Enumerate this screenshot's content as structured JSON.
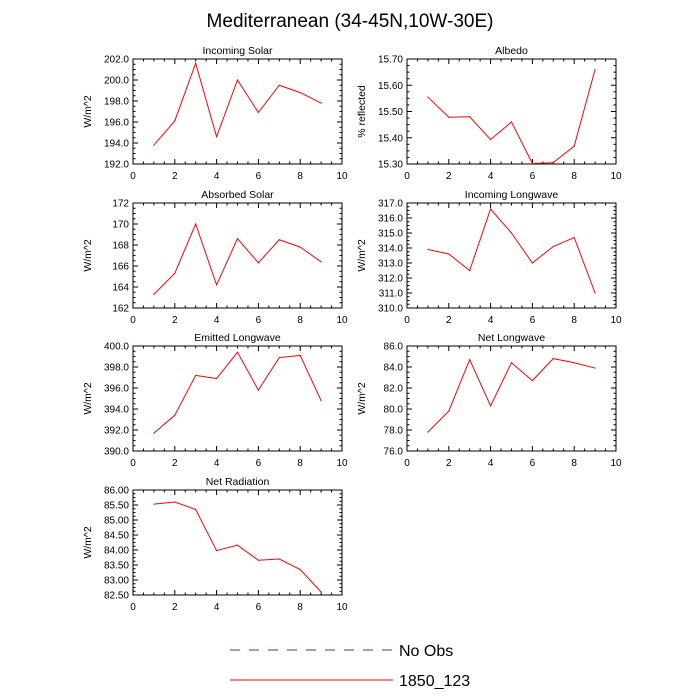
{
  "title": "Mediterranean (34-45N,10W-30E)",
  "colors": {
    "series": "#ff0000",
    "obs": "#3a3aa8",
    "axis": "#000000"
  },
  "legend": [
    {
      "label": "No Obs",
      "style": "dashed",
      "color": "#3a3aa8"
    },
    {
      "label": "1850_123",
      "style": "solid",
      "color": "#ff0000"
    }
  ],
  "chart_data": [
    {
      "type": "line",
      "title": "Incoming Solar",
      "ylabel": "W/m^2",
      "xlim": [
        0,
        10
      ],
      "ylim": [
        192,
        202
      ],
      "xticks": [
        "0",
        "2",
        "4",
        "6",
        "8",
        "10"
      ],
      "yticks": [
        "192.0",
        "194.0",
        "196.0",
        "198.0",
        "200.0",
        "202.0"
      ],
      "x": [
        1,
        2,
        3,
        4,
        5,
        6,
        7,
        8,
        9
      ],
      "series": [
        {
          "values": [
            193.8,
            196.1,
            201.6,
            194.6,
            200.0,
            196.9,
            199.5,
            198.8,
            197.8
          ]
        }
      ]
    },
    {
      "type": "line",
      "title": "Albedo",
      "ylabel": "% reflected",
      "xlim": [
        0,
        10
      ],
      "ylim": [
        15.3,
        15.7
      ],
      "xticks": [
        "0",
        "2",
        "4",
        "6",
        "8",
        "10"
      ],
      "yticks": [
        "15.30",
        "15.40",
        "15.50",
        "15.60",
        "15.70"
      ],
      "x": [
        1,
        2,
        3,
        4,
        5,
        6,
        7,
        8,
        9
      ],
      "series": [
        {
          "values": [
            15.555,
            15.478,
            15.48,
            15.393,
            15.46,
            15.302,
            15.305,
            15.368,
            15.66
          ]
        }
      ]
    },
    {
      "type": "line",
      "title": "Absorbed Solar",
      "ylabel": "W/m^2",
      "xlim": [
        0,
        10
      ],
      "ylim": [
        162,
        172
      ],
      "xticks": [
        "0",
        "2",
        "4",
        "6",
        "8",
        "10"
      ],
      "yticks": [
        "162",
        "164",
        "166",
        "168",
        "170",
        "172"
      ],
      "x": [
        1,
        2,
        3,
        4,
        5,
        6,
        7,
        8,
        9
      ],
      "series": [
        {
          "values": [
            163.3,
            165.3,
            170.0,
            164.2,
            168.6,
            166.3,
            168.5,
            167.8,
            166.4
          ]
        }
      ]
    },
    {
      "type": "line",
      "title": "Incoming Longwave",
      "ylabel": "W/m^2",
      "xlim": [
        0,
        10
      ],
      "ylim": [
        310,
        317
      ],
      "xticks": [
        "0",
        "2",
        "4",
        "6",
        "8",
        "10"
      ],
      "yticks": [
        "310.0",
        "311.0",
        "312.0",
        "313.0",
        "314.0",
        "315.0",
        "316.0",
        "317.0"
      ],
      "x": [
        1,
        2,
        3,
        4,
        5,
        6,
        7,
        8,
        9
      ],
      "series": [
        {
          "values": [
            313.9,
            313.6,
            312.5,
            316.6,
            315.0,
            313.0,
            314.1,
            314.7,
            311.0
          ]
        }
      ]
    },
    {
      "type": "line",
      "title": "Emitted Longwave",
      "ylabel": "W/m^2",
      "xlim": [
        0,
        10
      ],
      "ylim": [
        390,
        400
      ],
      "xticks": [
        "0",
        "2",
        "4",
        "6",
        "8",
        "10"
      ],
      "yticks": [
        "390.0",
        "392.0",
        "394.0",
        "396.0",
        "398.0",
        "400.0"
      ],
      "x": [
        1,
        2,
        3,
        4,
        5,
        6,
        7,
        8,
        9
      ],
      "series": [
        {
          "values": [
            391.7,
            393.4,
            397.2,
            396.9,
            399.4,
            395.8,
            398.9,
            399.1,
            394.8
          ]
        }
      ]
    },
    {
      "type": "line",
      "title": "Net Longwave",
      "ylabel": "W/m^2",
      "xlim": [
        0,
        10
      ],
      "ylim": [
        76,
        86
      ],
      "xticks": [
        "0",
        "2",
        "4",
        "6",
        "8",
        "10"
      ],
      "yticks": [
        "76.0",
        "78.0",
        "80.0",
        "82.0",
        "84.0",
        "86.0"
      ],
      "x": [
        1,
        2,
        3,
        4,
        5,
        6,
        7,
        8,
        9
      ],
      "series": [
        {
          "values": [
            77.8,
            79.8,
            84.7,
            80.3,
            84.4,
            82.7,
            84.8,
            84.4,
            83.9
          ]
        }
      ]
    },
    {
      "type": "line",
      "title": "Net Radiation",
      "ylabel": "W/m^2",
      "xlim": [
        0,
        10
      ],
      "ylim": [
        82.5,
        86
      ],
      "xticks": [
        "0",
        "2",
        "4",
        "6",
        "8",
        "10"
      ],
      "yticks": [
        "82.50",
        "83.00",
        "83.50",
        "84.00",
        "84.50",
        "85.00",
        "85.50",
        "86.00"
      ],
      "x": [
        1,
        2,
        3,
        4,
        5,
        6,
        7,
        8,
        9
      ],
      "series": [
        {
          "values": [
            85.53,
            85.6,
            85.35,
            83.98,
            84.16,
            83.66,
            83.7,
            83.35,
            82.6
          ]
        }
      ]
    }
  ]
}
